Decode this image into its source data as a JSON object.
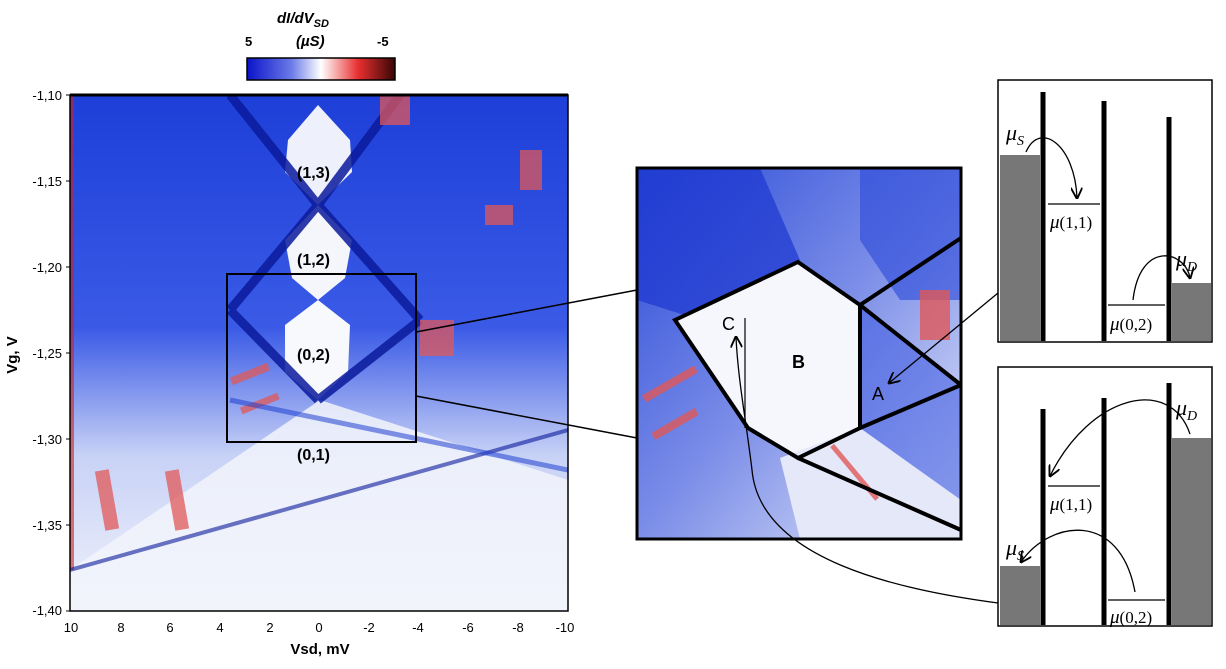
{
  "colorbar": {
    "title_main": "dI/dV",
    "title_sub": "SD",
    "unit": "(µS)",
    "min_label": "5",
    "max_label": "-5",
    "colors": [
      "#0a14c8",
      "#ffffff",
      "#d41010",
      "#3a0505"
    ]
  },
  "main_plot": {
    "x_label": "Vsd, mV",
    "y_label": "Vg, V",
    "x_ticks": [
      "10",
      "8",
      "6",
      "4",
      "2",
      "0",
      "-2",
      "-4",
      "-6",
      "-8",
      "-10"
    ],
    "y_ticks": [
      "-1,10",
      "-1,15",
      "-1,20",
      "-1,25",
      "-1,30",
      "-1,35",
      "-1,40"
    ],
    "state_labels": [
      "(1,3)",
      "(1,2)",
      "(0,2)",
      "(0,1)"
    ]
  },
  "zoom_inset": {
    "regions": [
      "C",
      "B",
      "A"
    ]
  },
  "energy_diagrams": {
    "top": {
      "mu_left": {
        "sym": "μ",
        "sub": "S"
      },
      "mu_right": {
        "sym": "μ",
        "sub": "D"
      },
      "level1": {
        "sym": "μ",
        "args": "(1,1)"
      },
      "level2": {
        "sym": "μ",
        "args": "(0,2)"
      }
    },
    "bottom": {
      "mu_left": {
        "sym": "μ",
        "sub": "S"
      },
      "mu_right": {
        "sym": "μ",
        "sub": "D"
      },
      "level1": {
        "sym": "μ",
        "args": "(1,1)"
      },
      "level2": {
        "sym": "μ",
        "args": "(0,2)"
      }
    }
  },
  "colors": {
    "blue": "#1030d8",
    "light_blue": "#b8c4f4",
    "red": "#e86060",
    "reservoir_gray": "#777777"
  }
}
